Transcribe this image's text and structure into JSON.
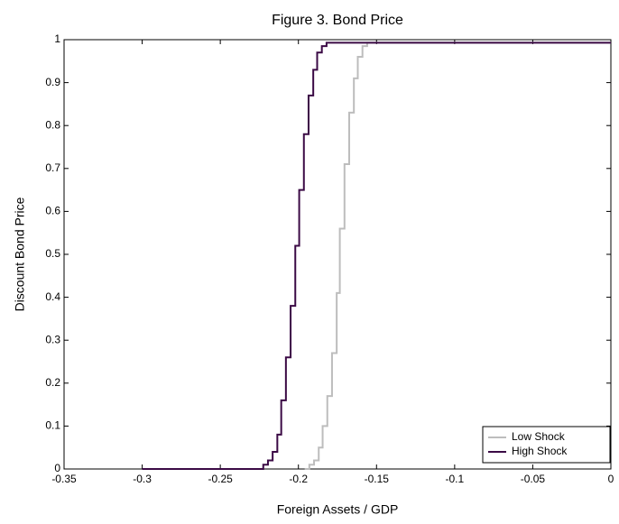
{
  "chart_data": {
    "type": "line",
    "title": "Figure 3. Bond Price",
    "x_label": "Foreign Assets / GDP",
    "y_label": "Discount Bond Price",
    "xlim": [
      -0.35,
      0
    ],
    "ylim": [
      0,
      1
    ],
    "xticks": [
      -0.35,
      -0.3,
      -0.25,
      -0.2,
      -0.15,
      -0.1,
      -0.05,
      0
    ],
    "yticks": [
      0,
      0.1,
      0.2,
      0.3,
      0.4,
      0.5,
      0.6,
      0.7,
      0.8,
      0.9,
      1
    ],
    "grid": false,
    "legend_loc": "lower right",
    "series": [
      {
        "name": "Low Shock",
        "color": "#bdbdbd",
        "x": [
          -0.196,
          -0.193,
          -0.193,
          -0.19,
          -0.19,
          -0.187,
          -0.187,
          -0.1845,
          -0.1845,
          -0.1815,
          -0.1815,
          -0.1785,
          -0.1785,
          -0.1755,
          -0.1755,
          -0.1735,
          -0.1735,
          -0.1705,
          -0.1705,
          -0.1675,
          -0.1675,
          -0.1645,
          -0.1645,
          -0.162,
          -0.162,
          -0.159,
          -0.159,
          -0.156,
          -0.156,
          0
        ],
        "values": [
          0,
          0,
          0.01,
          0.01,
          0.02,
          0.02,
          0.05,
          0.05,
          0.1,
          0.1,
          0.17,
          0.17,
          0.27,
          0.27,
          0.41,
          0.41,
          0.56,
          0.56,
          0.71,
          0.71,
          0.83,
          0.83,
          0.91,
          0.91,
          0.96,
          0.96,
          0.985,
          0.985,
          0.993,
          0.993
        ]
      },
      {
        "name": "High Shock",
        "color": "#3b0a45",
        "x": [
          -0.3,
          -0.2225,
          -0.2225,
          -0.2195,
          -0.2195,
          -0.2165,
          -0.2165,
          -0.2135,
          -0.2135,
          -0.211,
          -0.211,
          -0.208,
          -0.208,
          -0.205,
          -0.205,
          -0.202,
          -0.202,
          -0.1995,
          -0.1995,
          -0.1965,
          -0.1965,
          -0.1935,
          -0.1935,
          -0.1905,
          -0.1905,
          -0.188,
          -0.188,
          -0.185,
          -0.185,
          -0.182,
          -0.182,
          0
        ],
        "values": [
          0,
          0,
          0.01,
          0.01,
          0.02,
          0.02,
          0.04,
          0.04,
          0.08,
          0.08,
          0.16,
          0.16,
          0.26,
          0.26,
          0.38,
          0.38,
          0.52,
          0.52,
          0.65,
          0.65,
          0.78,
          0.78,
          0.87,
          0.87,
          0.93,
          0.93,
          0.97,
          0.97,
          0.985,
          0.985,
          0.993,
          0.993
        ]
      }
    ]
  }
}
